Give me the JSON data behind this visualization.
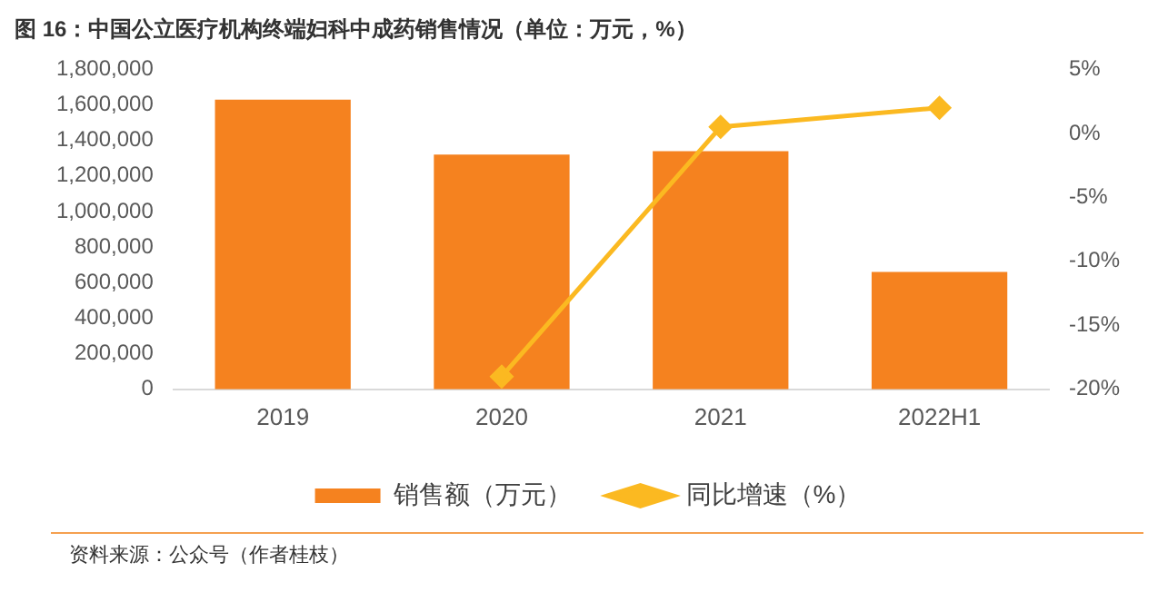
{
  "chart_data": {
    "type": "bar",
    "title": "图 16：中国公立医疗机构终端妇科中成药销售情况（单位：万元，%）",
    "categories": [
      "2019",
      "2020",
      "2021",
      "2022H1"
    ],
    "series": [
      {
        "name": "销售额（万元）",
        "color": "#f5821f",
        "values": [
          1630000,
          1320000,
          1340000,
          660000
        ]
      },
      {
        "name": "同比增速（%）",
        "type": "line",
        "axis": "y2",
        "color": "#fbb921",
        "values": [
          null,
          -19.0,
          0.5,
          2.0
        ]
      }
    ],
    "ylim": [
      0,
      1800000
    ],
    "yticks": [
      {
        "value": 0,
        "label": "0"
      },
      {
        "value": 200000,
        "label": "200,000"
      },
      {
        "value": 400000,
        "label": "400,000"
      },
      {
        "value": 600000,
        "label": "600,000"
      },
      {
        "value": 800000,
        "label": "800,000"
      },
      {
        "value": 1000000,
        "label": "1,000,000"
      },
      {
        "value": 1200000,
        "label": "1,200,000"
      },
      {
        "value": 1400000,
        "label": "1,400,000"
      },
      {
        "value": 1600000,
        "label": "1,600,000"
      },
      {
        "value": 1800000,
        "label": "1,800,000"
      }
    ],
    "y2lim": [
      -20,
      5
    ],
    "y2ticks": [
      {
        "value": -20,
        "label": "-20%"
      },
      {
        "value": -15,
        "label": "-15%"
      },
      {
        "value": -10,
        "label": "-10%"
      },
      {
        "value": -5,
        "label": "-5%"
      },
      {
        "value": 0,
        "label": "0%"
      },
      {
        "value": 5,
        "label": "5%"
      }
    ],
    "marker": "diamond",
    "legend": "bottom",
    "grid": false,
    "annotations": [
      "资料来源：公众号（作者桂枝）"
    ]
  }
}
